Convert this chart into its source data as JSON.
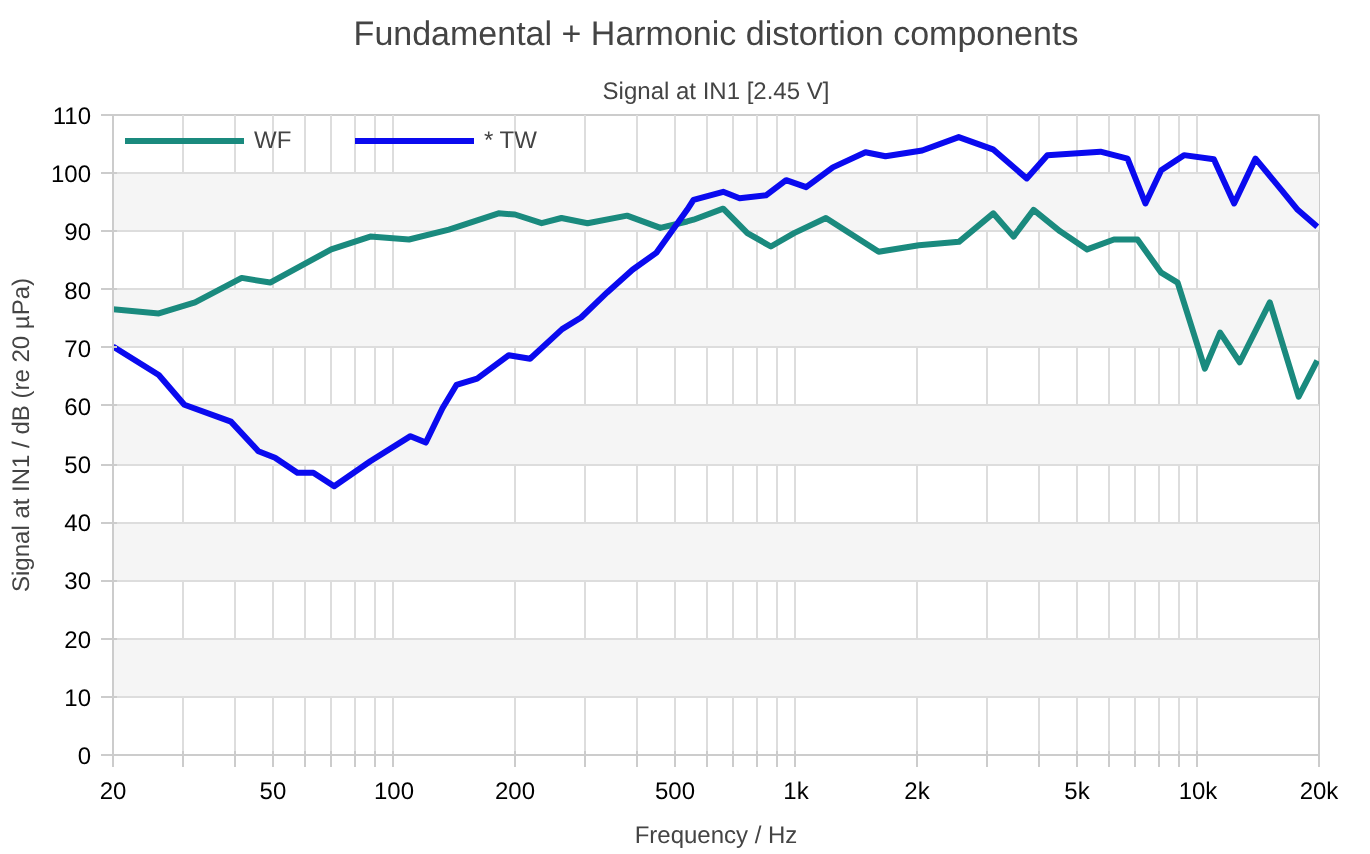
{
  "chart_data": {
    "type": "line",
    "title": "Fundamental + Harmonic distortion components",
    "subtitle": "Signal at IN1 [2.45 V]",
    "xlabel": "Frequency / Hz",
    "ylabel": "Signal at IN1 / dB (re 20 µPa)",
    "log": "x",
    "grid": true,
    "legend": "top left",
    "line_style": "solid",
    "marker": "none",
    "xlim": [
      20,
      20000
    ],
    "ylim": [
      0,
      110
    ],
    "xticks": [
      20,
      {
        "value": 30,
        "label": null
      },
      {
        "value": 40,
        "label": null
      },
      50,
      {
        "value": 60,
        "label": null
      },
      {
        "value": 70,
        "label": null
      },
      {
        "value": 80,
        "label": null
      },
      {
        "value": 90,
        "label": null
      },
      100,
      200,
      {
        "value": 300,
        "label": null
      },
      {
        "value": 400,
        "label": null
      },
      500,
      {
        "value": 600,
        "label": null
      },
      {
        "value": 700,
        "label": null
      },
      {
        "value": 800,
        "label": null
      },
      {
        "value": 900,
        "label": null
      },
      {
        "value": 1000,
        "label": "1k"
      },
      {
        "value": 2000,
        "label": "2k"
      },
      {
        "value": 3000,
        "label": null
      },
      {
        "value": 4000,
        "label": null
      },
      {
        "value": 5000,
        "label": "5k"
      },
      {
        "value": 6000,
        "label": null
      },
      {
        "value": 7000,
        "label": null
      },
      {
        "value": 8000,
        "label": null
      },
      {
        "value": 9000,
        "label": null
      },
      {
        "value": 10000,
        "label": "10k"
      },
      {
        "value": 20000,
        "label": "20k"
      }
    ],
    "yticks": [
      0,
      10,
      20,
      30,
      40,
      50,
      60,
      70,
      80,
      90,
      100,
      110
    ],
    "series": [
      {
        "name": "WF",
        "color": "#1a8a7e",
        "x": [
          20,
          26,
          32,
          41.8,
          49.2,
          69.8,
          87.3,
          109,
          137,
          182,
          200,
          233,
          261,
          303,
          380,
          460,
          536,
          556,
          659,
          757,
          866,
          989,
          1187,
          1606,
          2022,
          2543,
          3095,
          3477,
          3900,
          4540,
          5300,
          6180,
          7070,
          8100,
          8900,
          10400,
          11350,
          12700,
          15090,
          17800,
          19800
        ],
        "values": [
          76.6,
          75.9,
          77.8,
          82,
          81.2,
          86.9,
          89.1,
          88.6,
          90.3,
          93.1,
          92.9,
          91.4,
          92.3,
          91.4,
          92.7,
          90.6,
          91.7,
          92,
          93.9,
          89.7,
          87.4,
          89.7,
          92.3,
          86.5,
          87.6,
          88.2,
          93.1,
          89.1,
          93.7,
          90,
          86.9,
          88.6,
          88.6,
          82.9,
          81.2,
          66.4,
          72.6,
          67.5,
          77.8,
          61.6,
          67.8
        ]
      },
      {
        "name": "* TW",
        "color": "#0a0aef",
        "x": [
          20,
          26,
          30.1,
          39.3,
          46,
          50.6,
          57.5,
          63,
          71,
          87.3,
          109.9,
          120,
          132,
          143,
          161,
          193,
          218,
          262,
          292,
          339,
          392,
          449,
          536,
          556,
          659,
          724,
          842,
          945,
          1060,
          1235,
          1489,
          1670,
          2060,
          2540,
          3090,
          3750,
          4220,
          5720,
          6680,
          7400,
          8100,
          9230,
          10950,
          12300,
          13900,
          16140,
          17700,
          19800
        ],
        "values": [
          70.2,
          65.3,
          60.2,
          57.3,
          52.2,
          51.1,
          48.5,
          48.5,
          46.2,
          50.5,
          54.8,
          53.7,
          59.6,
          63.6,
          64.7,
          68.7,
          68.1,
          73.2,
          75.2,
          79.5,
          83.4,
          86.3,
          93.7,
          95.4,
          96.8,
          95.7,
          96.2,
          98.8,
          97.6,
          101,
          103.6,
          102.9,
          103.9,
          106.2,
          104.1,
          99.1,
          103.1,
          103.7,
          102.5,
          94.8,
          100.5,
          103.1,
          102.4,
          94.8,
          102.5,
          97.1,
          93.7,
          90.8
        ]
      }
    ]
  }
}
